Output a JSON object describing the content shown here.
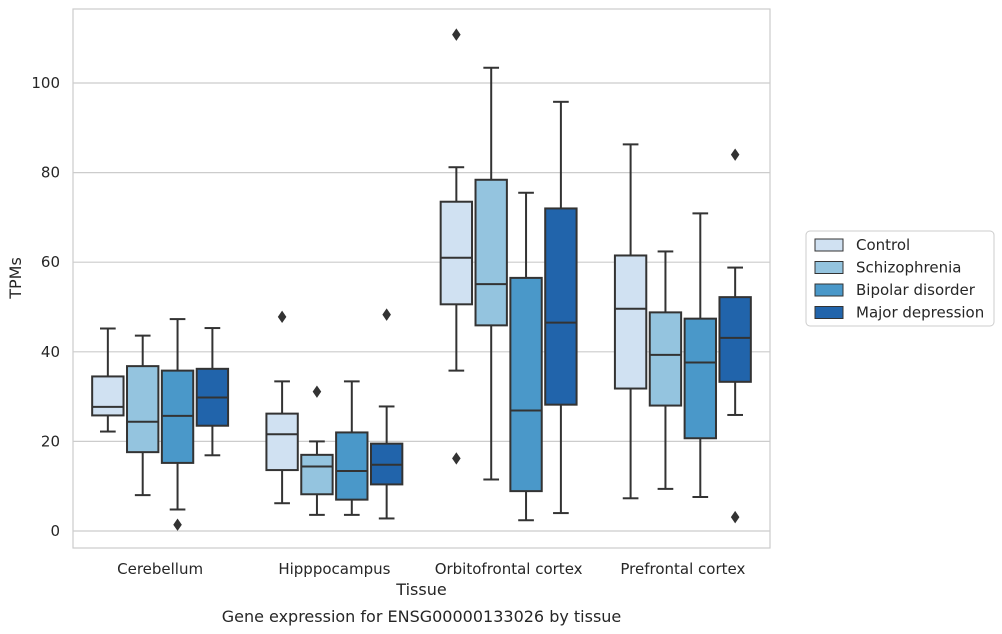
{
  "chart_data": {
    "type": "box",
    "xlabel": "Tissue",
    "ylabel": "TPMs",
    "caption": "Gene expression for ENSG00000133026 by tissue",
    "ylim": [
      -4,
      116
    ],
    "yticks": [
      0,
      20,
      40,
      60,
      80,
      100
    ],
    "grid": "horizontal",
    "legend_position": "right",
    "categories": [
      "Cerebellum",
      "Hipppocampus",
      "Orbitofrontal cortex",
      "Prefrontal cortex"
    ],
    "series": [
      {
        "name": "Control",
        "color": "#d0e1f2",
        "boxes": [
          {
            "whislo": 22.2,
            "q1": 25.8,
            "med": 27.7,
            "q3": 34.5,
            "whishi": 45.2,
            "fliers": []
          },
          {
            "whislo": 6.2,
            "q1": 13.6,
            "med": 21.6,
            "q3": 26.2,
            "whishi": 33.4,
            "fliers": [
              47.8
            ]
          },
          {
            "whislo": 35.8,
            "q1": 50.6,
            "med": 61.0,
            "q3": 73.5,
            "whishi": 81.2,
            "fliers": [
              16.2,
              110.8
            ]
          },
          {
            "whislo": 7.3,
            "q1": 31.8,
            "med": 49.6,
            "q3": 61.5,
            "whishi": 86.3,
            "fliers": []
          }
        ]
      },
      {
        "name": "Schizophrenia",
        "color": "#94c4df",
        "boxes": [
          {
            "whislo": 8.0,
            "q1": 17.6,
            "med": 24.4,
            "q3": 36.8,
            "whishi": 43.6,
            "fliers": []
          },
          {
            "whislo": 3.6,
            "q1": 8.2,
            "med": 14.4,
            "q3": 17.0,
            "whishi": 20.0,
            "fliers": [
              31.1
            ]
          },
          {
            "whislo": 11.5,
            "q1": 45.9,
            "med": 55.1,
            "q3": 78.4,
            "whishi": 103.4,
            "fliers": []
          },
          {
            "whislo": 9.4,
            "q1": 28.0,
            "med": 39.3,
            "q3": 48.8,
            "whishi": 62.4,
            "fliers": []
          }
        ]
      },
      {
        "name": "Bipolar disorder",
        "color": "#4a98c9",
        "boxes": [
          {
            "whislo": 4.8,
            "q1": 15.2,
            "med": 25.7,
            "q3": 35.8,
            "whishi": 47.3,
            "fliers": [
              1.4
            ]
          },
          {
            "whislo": 3.6,
            "q1": 7.0,
            "med": 13.4,
            "q3": 22.0,
            "whishi": 33.4,
            "fliers": []
          },
          {
            "whislo": 2.4,
            "q1": 8.9,
            "med": 26.9,
            "q3": 56.5,
            "whishi": 75.5,
            "fliers": []
          },
          {
            "whislo": 7.6,
            "q1": 20.7,
            "med": 37.6,
            "q3": 47.4,
            "whishi": 70.9,
            "fliers": []
          }
        ]
      },
      {
        "name": "Major depression",
        "color": "#2164ab",
        "boxes": [
          {
            "whislo": 16.9,
            "q1": 23.5,
            "med": 29.8,
            "q3": 36.2,
            "whishi": 45.3,
            "fliers": []
          },
          {
            "whislo": 2.8,
            "q1": 10.4,
            "med": 14.8,
            "q3": 19.5,
            "whishi": 27.8,
            "fliers": [
              48.3
            ]
          },
          {
            "whislo": 4.0,
            "q1": 28.2,
            "med": 46.5,
            "q3": 72.0,
            "whishi": 95.8,
            "fliers": []
          },
          {
            "whislo": 25.9,
            "q1": 33.3,
            "med": 43.1,
            "q3": 52.2,
            "whishi": 58.8,
            "fliers": [
              3.1,
              84.0
            ]
          }
        ]
      }
    ]
  },
  "style": {
    "grid_color": "#cccccc",
    "frame_color": "#cccccc",
    "line_color": "#333333",
    "text_color": "#262626"
  }
}
